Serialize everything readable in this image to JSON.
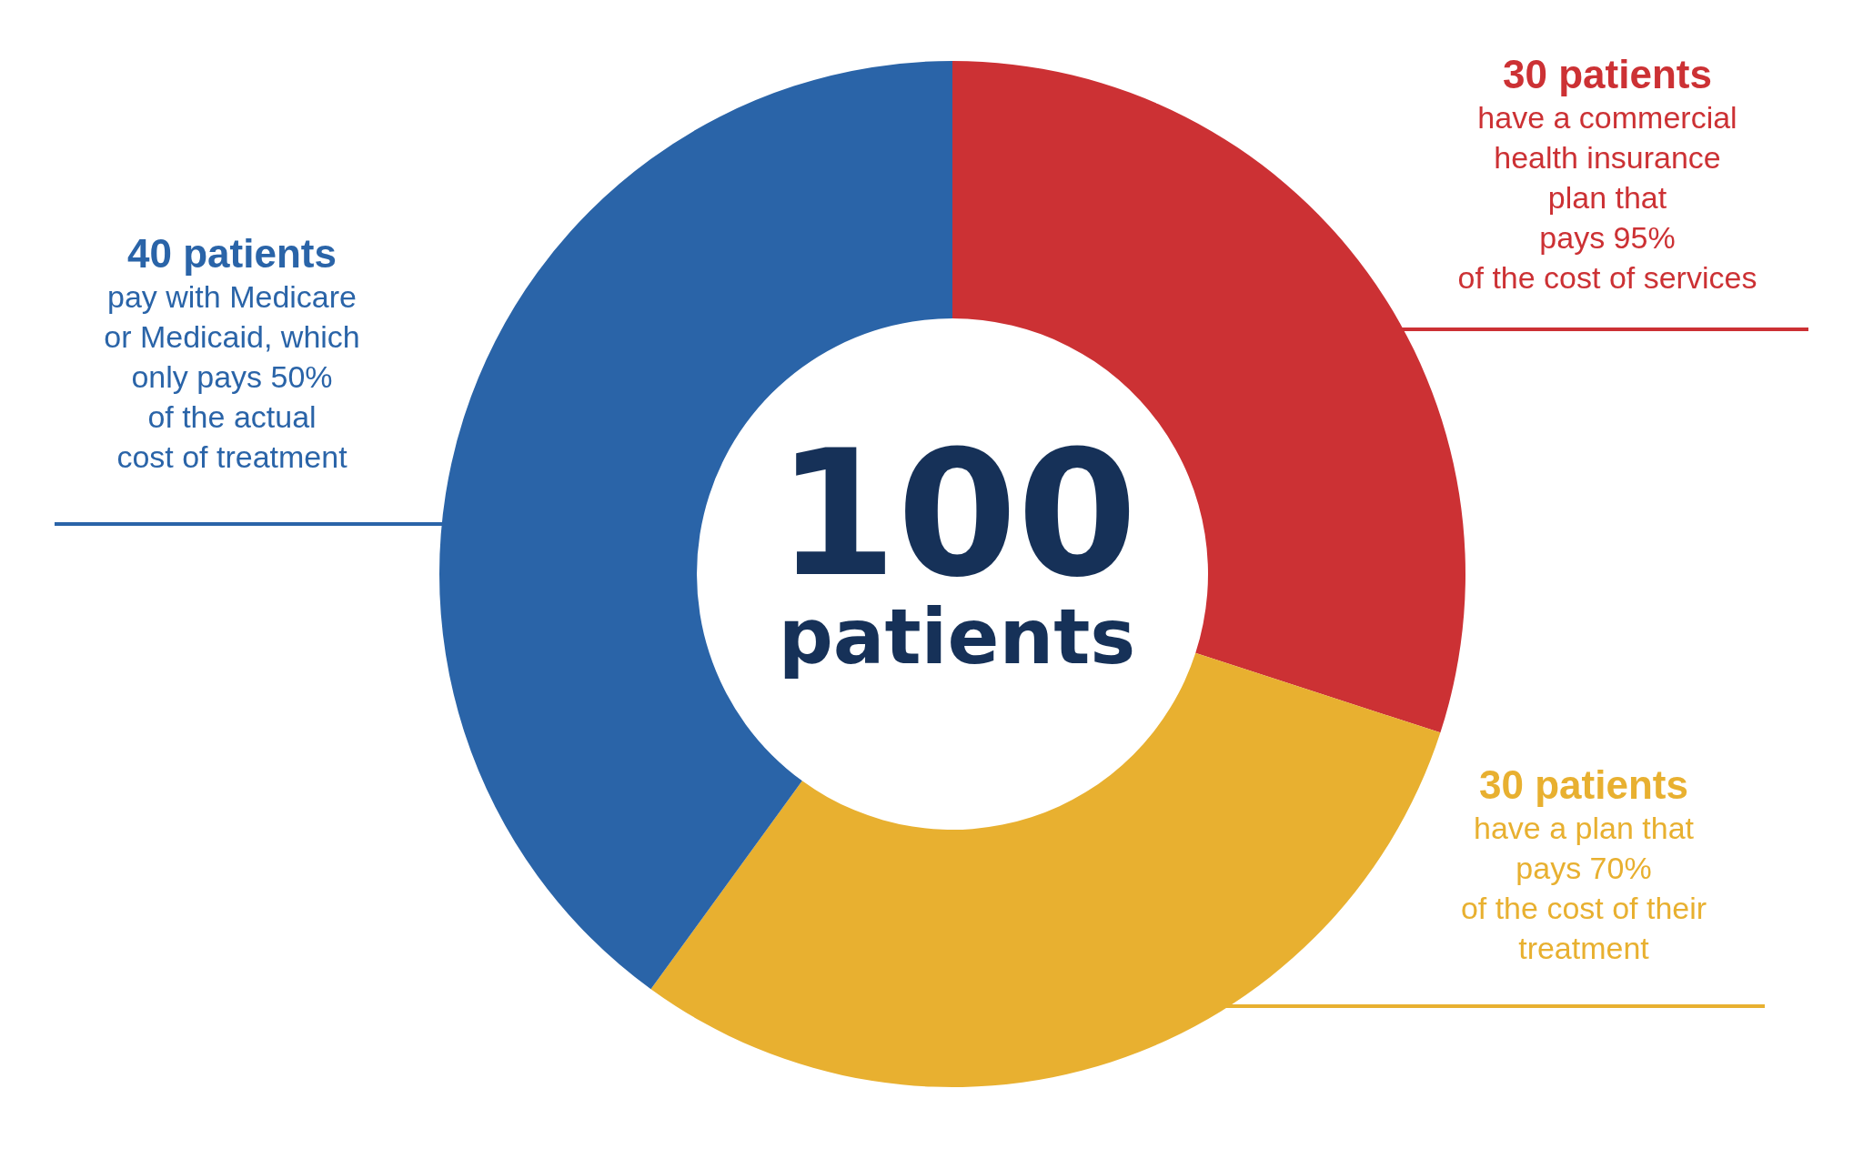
{
  "chart_data": {
    "type": "donut",
    "title": "100\npatients",
    "categories": [
      "30 patients\nhave a commercial\nhealth insurance\nplan that\npays 95%\nof the cost of services",
      "30 patients\nhave a plan that\npays 70%\nof the cost of their\ntreatment",
      "40 patients\npay with Medicare\nor Medicaid, which\nonly pays 50%\nof the actual\ncost of treatment"
    ],
    "values": [
      30,
      30,
      40
    ],
    "colors": [
      "#cc3134",
      "#e8b030",
      "#2a64a8"
    ],
    "legend": false
  }
}
